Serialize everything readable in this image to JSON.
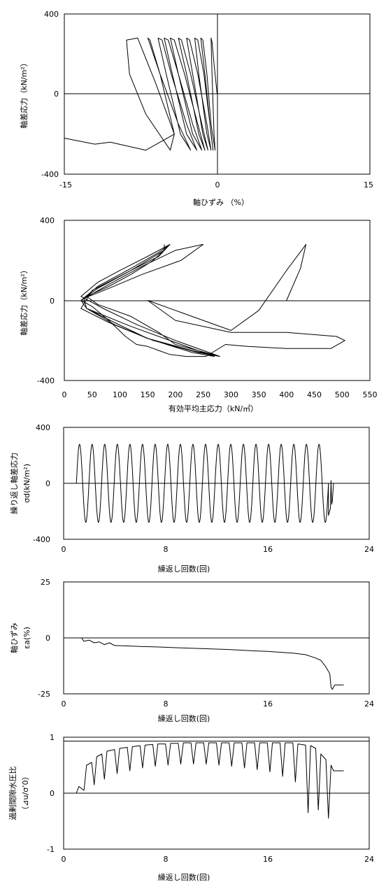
{
  "chart_data": [
    {
      "id": "p1",
      "type": "line",
      "title": "",
      "xlabel": "軸ひずみ （%）",
      "ylabel": "軸差応力（kN/m²）",
      "xlim": [
        -15,
        15
      ],
      "ylim": [
        -400,
        400
      ],
      "x_ticks": [
        "-15",
        "0",
        "15"
      ],
      "y_ticks": [
        "400",
        "0",
        "-400"
      ],
      "grid": false,
      "series": [
        {
          "x": [
            0,
            -0.3,
            -0.5,
            -0.6,
            -0.5,
            -0.3,
            -0.2,
            -0.6,
            -1.0,
            -1.4,
            -1.6,
            -1.2,
            -0.6,
            -0.4,
            -0.7,
            -1.3,
            -1.9,
            -2.2,
            -1.8,
            -1.0,
            -0.6,
            -1.0,
            -1.9,
            -2.7,
            -3.0,
            -2.4,
            -1.4,
            -0.9,
            -1.5,
            -2.6,
            -3.5,
            -3.8,
            -3.0,
            -1.8,
            -1.2,
            -1.9,
            -3.2,
            -4.2,
            -4.6,
            -3.8,
            -2.4,
            -1.5,
            -2.4,
            -3.8,
            -4.8,
            -5.2,
            -4.4,
            -3.0,
            -2.0,
            -3.0,
            -4.5,
            -5.4,
            -5.8,
            -5.0,
            -3.6,
            -2.6,
            -3.8,
            -5.6,
            -6.6,
            -6.8,
            -5.6,
            -4.2,
            -4.6,
            -7.0,
            -8.6,
            -8.9,
            -7.8,
            -6.0,
            -4.2,
            -7.0,
            -10.5,
            -12.0,
            -13.0,
            -15.0
          ],
          "y": [
            0,
            150,
            260,
            280,
            100,
            -200,
            -280,
            -150,
            100,
            270,
            280,
            100,
            -200,
            -280,
            -150,
            100,
            270,
            280,
            100,
            -200,
            -280,
            -150,
            100,
            270,
            280,
            100,
            -200,
            -280,
            -150,
            100,
            270,
            280,
            100,
            -200,
            -280,
            -150,
            100,
            270,
            280,
            100,
            -200,
            -280,
            -150,
            100,
            270,
            280,
            100,
            -200,
            -280,
            -150,
            100,
            270,
            280,
            100,
            -200,
            -280,
            -150,
            100,
            270,
            280,
            100,
            -200,
            -280,
            -100,
            100,
            270,
            280,
            50,
            -200,
            -280,
            -240,
            -250,
            -240,
            -220
          ]
        }
      ]
    },
    {
      "id": "p2",
      "type": "line",
      "title": "",
      "xlabel": "有効平均主応力（kN/㎡）",
      "ylabel": "軸差応力（kN/m²）",
      "xlim": [
        0,
        550
      ],
      "ylim": [
        -400,
        400
      ],
      "x_ticks": [
        "0",
        "50",
        "100",
        "150",
        "200",
        "250",
        "300",
        "350",
        "400",
        "450",
        "500",
        "550"
      ],
      "y_ticks": [
        "400",
        "0",
        "-400"
      ],
      "grid": false,
      "series": [
        {
          "x": [
            400,
            425,
            435,
            400,
            350,
            300,
            250,
            200,
            150,
            200,
            300,
            400,
            490,
            505,
            480,
            400,
            330,
            290,
            255,
            220,
            190,
            170,
            150,
            130,
            110,
            80,
            50,
            30,
            60,
            120,
            170,
            190,
            160,
            120,
            80,
            40,
            60,
            120,
            170,
            200,
            280,
            240,
            160,
            90,
            40,
            30,
            60,
            120,
            170,
            190,
            150,
            100,
            60,
            30,
            70,
            130,
            200,
            260,
            280,
            230,
            150,
            90,
            40,
            30,
            80,
            140,
            200,
            250,
            210,
            140,
            80,
            35,
            40,
            120,
            200,
            270,
            230,
            150,
            80,
            30,
            50,
            120,
            180,
            180
          ],
          "y": [
            0,
            160,
            280,
            150,
            -50,
            -150,
            -100,
            -50,
            0,
            -100,
            -160,
            -160,
            -180,
            -200,
            -240,
            -240,
            -230,
            -220,
            -280,
            -280,
            -270,
            -250,
            -230,
            -220,
            -180,
            -100,
            -30,
            0,
            60,
            150,
            220,
            280,
            200,
            130,
            70,
            20,
            -20,
            -80,
            -160,
            -220,
            -280,
            -260,
            -200,
            -120,
            -40,
            0,
            70,
            160,
            240,
            280,
            220,
            150,
            90,
            20,
            -40,
            -120,
            -200,
            -260,
            -280,
            -250,
            -190,
            -110,
            -40,
            0,
            80,
            170,
            250,
            280,
            200,
            130,
            60,
            10,
            -40,
            -130,
            -210,
            -280,
            -260,
            -190,
            -110,
            -40,
            50,
            150,
            250,
            280
          ]
        }
      ]
    },
    {
      "id": "p3",
      "type": "line",
      "title": "",
      "xlabel": "繰返し回数(回)",
      "ylabel_line1": "繰り返し軸差応力",
      "ylabel_line2": "σd(kN/m²)",
      "xlim": [
        0,
        24
      ],
      "ylim": [
        -400,
        400
      ],
      "x_ticks": [
        "0",
        "8",
        "16",
        "24"
      ],
      "y_ticks": [
        "400",
        "0",
        "-400"
      ],
      "grid": false,
      "cycles": 20,
      "amplitude": 280,
      "start": 1.0,
      "end_x": 20.8,
      "tail": [
        [
          20.8,
          -230
        ],
        [
          20.95,
          -180
        ],
        [
          21.0,
          20
        ],
        [
          21.05,
          -150
        ],
        [
          21.1,
          -130
        ],
        [
          21.2,
          0
        ],
        [
          22.0,
          0
        ]
      ]
    },
    {
      "id": "p4",
      "type": "line",
      "title": "",
      "xlabel": "繰返し回数(回)",
      "ylabel_line1": "軸ひずみ",
      "ylabel_line2": "εa(%)",
      "xlim": [
        0,
        24
      ],
      "ylim": [
        -25,
        25
      ],
      "x_ticks": [
        "0",
        "8",
        "16",
        "24"
      ],
      "y_ticks": [
        "25",
        "0",
        "-25"
      ],
      "grid": false,
      "points": [
        [
          0,
          0
        ],
        [
          1.4,
          0
        ],
        [
          1.6,
          -1.5
        ],
        [
          2.0,
          -1.0
        ],
        [
          2.4,
          -2.2
        ],
        [
          2.8,
          -1.8
        ],
        [
          3.2,
          -3.0
        ],
        [
          3.6,
          -2.2
        ],
        [
          4.0,
          -3.4
        ],
        [
          5.0,
          -3.6
        ],
        [
          6.0,
          -3.8
        ],
        [
          7.0,
          -4.0
        ],
        [
          8.0,
          -4.2
        ],
        [
          9.0,
          -4.4
        ],
        [
          10.0,
          -4.6
        ],
        [
          11.0,
          -4.8
        ],
        [
          12.0,
          -5.0
        ],
        [
          13.0,
          -5.2
        ],
        [
          14.0,
          -5.5
        ],
        [
          15.0,
          -5.8
        ],
        [
          16.0,
          -6.0
        ],
        [
          17.0,
          -6.4
        ],
        [
          18.0,
          -6.8
        ],
        [
          19.0,
          -7.5
        ],
        [
          19.8,
          -9.0
        ],
        [
          20.2,
          -10.0
        ],
        [
          20.6,
          -13.0
        ],
        [
          20.9,
          -16.0
        ],
        [
          21.0,
          -22.0
        ],
        [
          21.1,
          -23.0
        ],
        [
          21.3,
          -21.0
        ],
        [
          22.0,
          -21.0
        ]
      ]
    },
    {
      "id": "p5",
      "type": "line",
      "title": "",
      "xlabel": "繰返し回数(回)",
      "ylabel_line1": "過剰間隙水圧比",
      "ylabel_line2": "（⊿u/σ’0）",
      "xlim": [
        0,
        24
      ],
      "ylim": [
        -1,
        1
      ],
      "x_ticks": [
        "0",
        "8",
        "16",
        "24"
      ],
      "y_ticks": [
        "1",
        "0",
        "-1"
      ],
      "grid": false,
      "reference_line": 0.93,
      "points": [
        [
          0,
          0
        ],
        [
          1.0,
          0
        ],
        [
          1.2,
          0.12
        ],
        [
          1.6,
          0.05
        ],
        [
          1.8,
          0.5
        ],
        [
          2.2,
          0.55
        ],
        [
          2.4,
          0.15
        ],
        [
          2.6,
          0.65
        ],
        [
          3.0,
          0.7
        ],
        [
          3.2,
          0.25
        ],
        [
          3.4,
          0.75
        ],
        [
          4.0,
          0.78
        ],
        [
          4.2,
          0.35
        ],
        [
          4.4,
          0.8
        ],
        [
          5.0,
          0.82
        ],
        [
          5.2,
          0.4
        ],
        [
          5.4,
          0.83
        ],
        [
          6.0,
          0.85
        ],
        [
          6.2,
          0.45
        ],
        [
          6.4,
          0.86
        ],
        [
          7.0,
          0.87
        ],
        [
          7.2,
          0.48
        ],
        [
          7.4,
          0.88
        ],
        [
          8.0,
          0.88
        ],
        [
          8.2,
          0.5
        ],
        [
          8.4,
          0.89
        ],
        [
          9.0,
          0.89
        ],
        [
          9.2,
          0.52
        ],
        [
          9.4,
          0.9
        ],
        [
          10.0,
          0.9
        ],
        [
          10.2,
          0.52
        ],
        [
          10.4,
          0.9
        ],
        [
          11.0,
          0.9
        ],
        [
          11.2,
          0.52
        ],
        [
          11.4,
          0.9
        ],
        [
          12.0,
          0.9
        ],
        [
          12.2,
          0.5
        ],
        [
          12.4,
          0.9
        ],
        [
          13.0,
          0.9
        ],
        [
          13.2,
          0.48
        ],
        [
          13.4,
          0.9
        ],
        [
          14.0,
          0.9
        ],
        [
          14.2,
          0.45
        ],
        [
          14.4,
          0.9
        ],
        [
          15.0,
          0.9
        ],
        [
          15.2,
          0.42
        ],
        [
          15.4,
          0.9
        ],
        [
          16.0,
          0.9
        ],
        [
          16.2,
          0.38
        ],
        [
          16.4,
          0.9
        ],
        [
          17.0,
          0.9
        ],
        [
          17.2,
          0.3
        ],
        [
          17.4,
          0.9
        ],
        [
          18.0,
          0.9
        ],
        [
          18.2,
          0.2
        ],
        [
          18.4,
          0.88
        ],
        [
          19.0,
          0.86
        ],
        [
          19.2,
          -0.35
        ],
        [
          19.4,
          0.85
        ],
        [
          19.8,
          0.8
        ],
        [
          20.0,
          -0.3
        ],
        [
          20.2,
          0.7
        ],
        [
          20.6,
          0.6
        ],
        [
          20.8,
          -0.45
        ],
        [
          21.0,
          0.5
        ],
        [
          21.2,
          0.4
        ],
        [
          22.0,
          0.4
        ]
      ]
    }
  ]
}
